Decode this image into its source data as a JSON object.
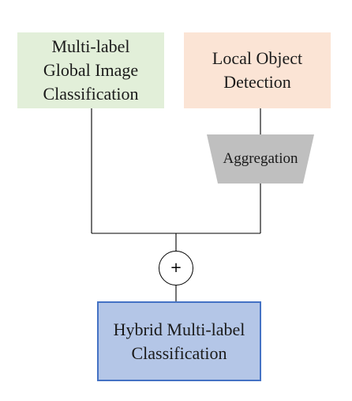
{
  "diagram": {
    "global_box": {
      "label": "Multi-label\nGlobal Image\nClassification",
      "color": "#e2efd9"
    },
    "local_box": {
      "label": "Local Object\nDetection",
      "color": "#fbe4d5"
    },
    "aggregation": {
      "label": "Aggregation",
      "color": "#bfbfbf"
    },
    "sum_node": {
      "symbol": "+"
    },
    "hybrid_box": {
      "label": "Hybrid Multi-label\nClassification",
      "color": "#b4c6e7",
      "border_color": "#4472c4"
    }
  }
}
